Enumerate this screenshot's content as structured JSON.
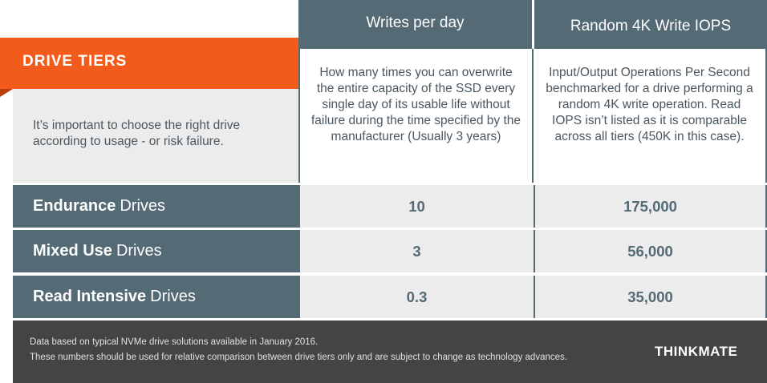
{
  "header": {
    "writes_per_day": "Writes per day",
    "random_iops": "Random 4K Write IOPS"
  },
  "tiers": {
    "title": "DRIVE TIERS",
    "intro": "It’s important to choose the right drive according to usage - or risk failure."
  },
  "descriptions": {
    "writes_per_day": "How many times you can overwrite the entire capacity of the SSD every single day of its usable life without failure during the time specified by the manufacturer (Usually 3 years)",
    "random_iops": "Input/Output Operations Per Second benchmarked for a drive performing a random 4K write operation. Read IOPS isn’t listed as it is comparable across all tiers (450K in this case)."
  },
  "rows": [
    {
      "name_bold": "Endurance",
      "name_rest": "Drives",
      "writes": "10",
      "iops": "175,000"
    },
    {
      "name_bold": "Mixed Use",
      "name_rest": "Drives",
      "writes": "3",
      "iops": "56,000"
    },
    {
      "name_bold": "Read Intensive",
      "name_rest": "Drives",
      "writes": "0.3",
      "iops": "35,000"
    }
  ],
  "footer": {
    "note1": "Data based on typical NVMe drive solutions available in January 2016.",
    "note2": "These numbers should be used for relative comparison between drive tiers only and are subject to change as technology advances.",
    "brand": "THINKMATE"
  },
  "colors": {
    "slate": "#546a75",
    "orange": "#f35b1c",
    "light_gray": "#ececec",
    "footer_bg": "#444444"
  }
}
